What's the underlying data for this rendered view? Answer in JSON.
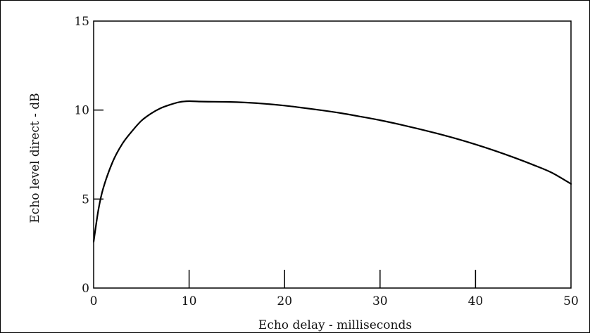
{
  "chart_data": {
    "type": "line",
    "title": "",
    "xlabel": "Echo delay - milliseconds",
    "ylabel": "Echo level direct - dB",
    "xlim": [
      0,
      50
    ],
    "ylim": [
      0,
      15
    ],
    "x_ticks": [
      "0",
      "10",
      "20",
      "30",
      "40",
      "50"
    ],
    "y_ticks": [
      "0",
      "5",
      "10",
      "15"
    ],
    "grid": false,
    "series": [
      {
        "x": [
          0,
          0.5,
          1,
          2,
          3,
          4,
          5,
          6,
          7,
          8,
          9,
          10,
          11,
          12,
          14,
          16,
          18,
          20,
          22,
          24,
          26,
          28,
          30,
          32,
          34,
          36,
          38,
          40,
          42,
          44,
          46,
          48,
          50
        ],
        "y": [
          2.6,
          4.4,
          5.6,
          7.1,
          8.1,
          8.8,
          9.4,
          9.8,
          10.1,
          10.3,
          10.45,
          10.5,
          10.48,
          10.47,
          10.46,
          10.42,
          10.35,
          10.25,
          10.12,
          9.98,
          9.82,
          9.63,
          9.43,
          9.2,
          8.95,
          8.68,
          8.39,
          8.07,
          7.72,
          7.34,
          6.93,
          6.48,
          5.85
        ]
      }
    ]
  }
}
